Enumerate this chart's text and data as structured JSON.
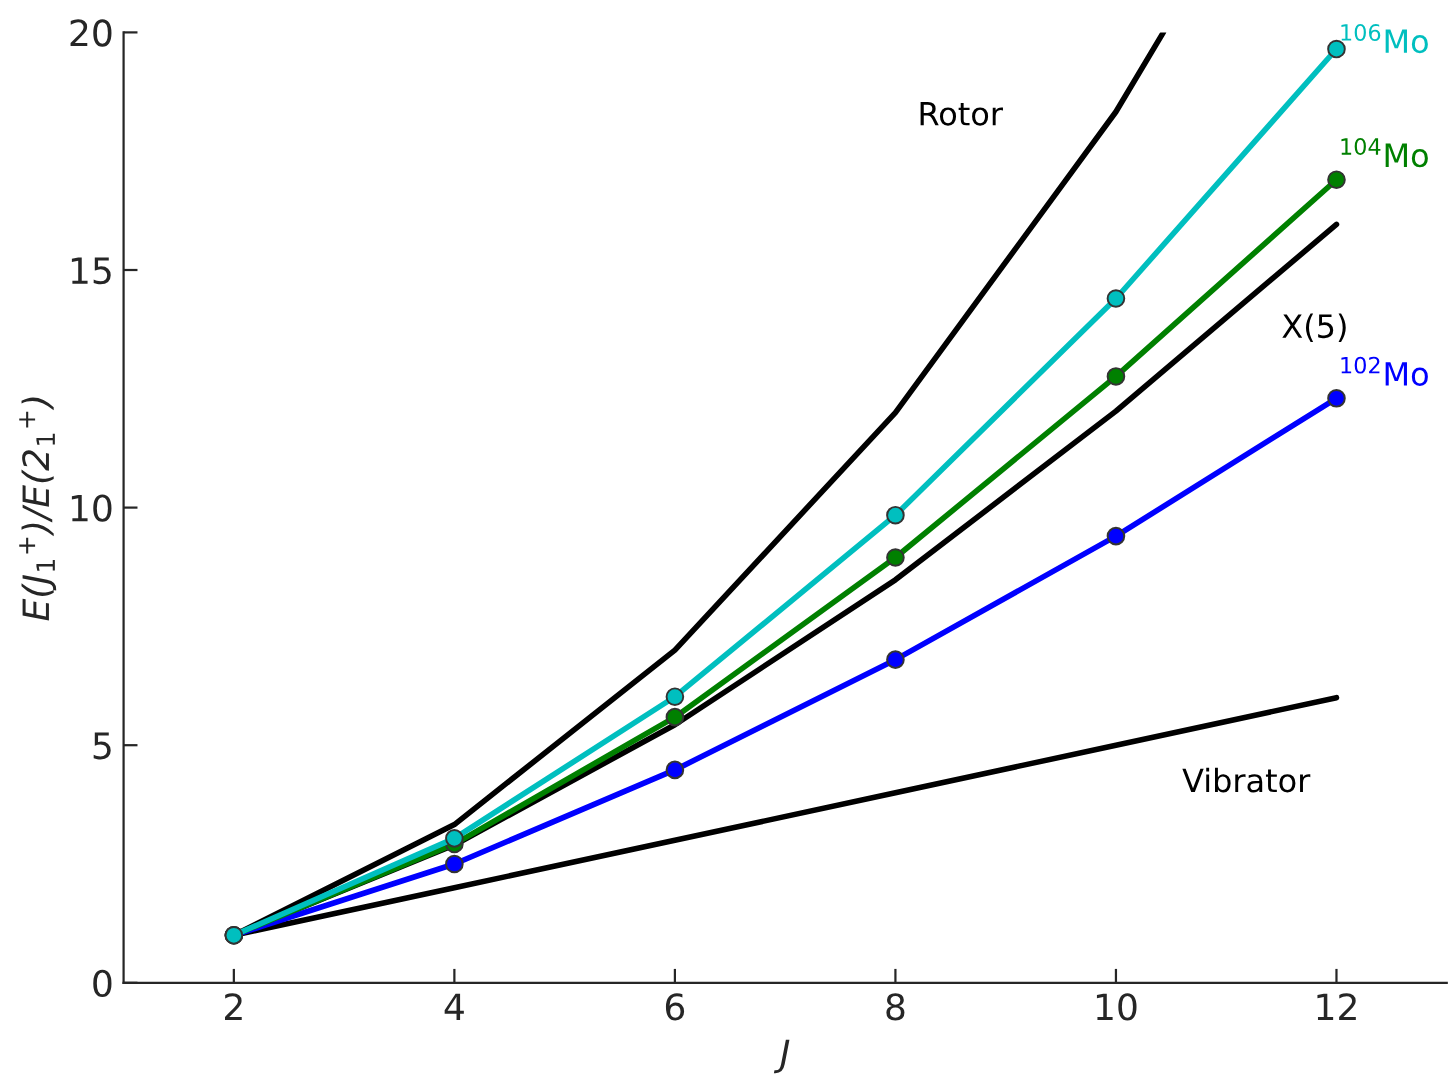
{
  "chart_data": {
    "type": "line",
    "xlabel": "J",
    "ylabel": "E(J$_{1}$$^{+}$)/E(2$_{1}$$^{+}$)",
    "x": [
      2,
      4,
      6,
      8,
      10,
      12
    ],
    "series": [
      {
        "name": "Rotor",
        "color": "#000000",
        "marker": "none",
        "x": [
          2,
          4,
          6,
          8,
          10,
          10.43
        ],
        "values": [
          1,
          3.33,
          7,
          12,
          18.33,
          20
        ]
      },
      {
        "name": "X(5)",
        "color": "#000000",
        "marker": "none",
        "values": [
          1,
          2.9,
          5.43,
          8.48,
          12.03,
          15.96
        ]
      },
      {
        "name": "Vibrator",
        "color": "#000000",
        "marker": "none",
        "values": [
          1,
          2,
          3,
          4,
          5,
          6
        ]
      },
      {
        "name": "$^{102}$Mo",
        "color": "#0000ff",
        "marker": "circle",
        "values": [
          1,
          2.5,
          4.48,
          6.8,
          9.4,
          12.3
        ]
      },
      {
        "name": "$^{104}$Mo",
        "color": "#008000",
        "marker": "circle",
        "values": [
          1,
          2.92,
          5.59,
          8.95,
          12.76,
          16.9
        ]
      },
      {
        "name": "$^{106}$Mo",
        "color": "#00bfbf",
        "marker": "circle",
        "values": [
          1,
          3.04,
          6.02,
          9.84,
          14.4,
          19.65
        ]
      }
    ],
    "xlim": [
      1,
      13
    ],
    "xticks": [
      2,
      4,
      6,
      8,
      10,
      12
    ],
    "ylim": [
      0,
      20
    ],
    "yticks": [
      0,
      5,
      10,
      15,
      20
    ],
    "grid": false,
    "legend": false,
    "line_style": "solid"
  }
}
